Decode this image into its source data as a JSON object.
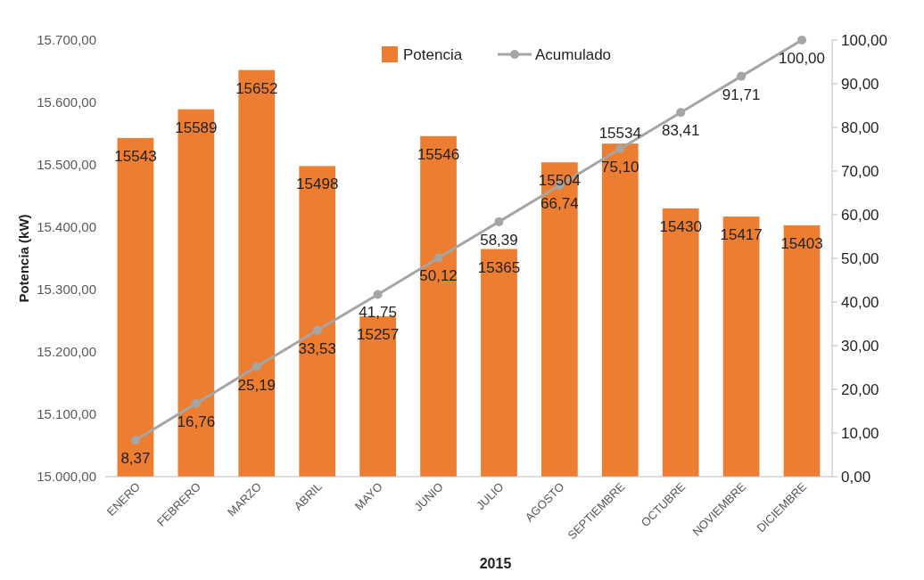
{
  "chart_data": {
    "type": "bar",
    "xlabel": "2015",
    "ylabel": "Potencia (kW)",
    "categories": [
      "ENERO",
      "FEBRERO",
      "MARZO",
      "ABRIL",
      "MAYO",
      "JUNIO",
      "JULIO",
      "AGOSTO",
      "SEPTIEMBRE",
      "OCTUBRE",
      "NOVIEMBRE",
      "DICIEMBRE"
    ],
    "series": [
      {
        "name": "Potencia",
        "color": "#ed7d31",
        "values": [
          15543,
          15589,
          15652,
          15498,
          15257,
          15546,
          15365,
          15504,
          15534,
          15430,
          15417,
          15403
        ],
        "value_labels": [
          "15543",
          "15589",
          "15652",
          "15498",
          "15257",
          "15546",
          "15365",
          "15504",
          "15534",
          "15430",
          "15417",
          "15403"
        ]
      },
      {
        "name": "Acumulado",
        "type": "line",
        "axis": "y2",
        "color": "#a5a5a5",
        "values": [
          8.37,
          16.76,
          25.19,
          33.53,
          41.75,
          50.12,
          58.39,
          66.74,
          75.1,
          83.41,
          91.71,
          100.0
        ],
        "value_labels": [
          "8,37",
          "16,76",
          "25,19",
          "33,53",
          "41,75",
          "50,12",
          "58,39",
          "66,74",
          "75,10",
          "83,41",
          "91,71",
          "100,00"
        ]
      }
    ],
    "ylim": [
      15000,
      15700
    ],
    "yticks": [
      {
        "value": 15000,
        "label": "15.000,00"
      },
      {
        "value": 15100,
        "label": "15.100,00"
      },
      {
        "value": 15200,
        "label": "15.200,00"
      },
      {
        "value": 15300,
        "label": "15.300,00"
      },
      {
        "value": 15400,
        "label": "15.400,00"
      },
      {
        "value": 15500,
        "label": "15.500,00"
      },
      {
        "value": 15600,
        "label": "15.600,00"
      },
      {
        "value": 15700,
        "label": "15.700,00"
      }
    ],
    "y2lim": [
      0,
      100
    ],
    "y2ticks": [
      {
        "value": 0,
        "label": "0,00"
      },
      {
        "value": 10,
        "label": "10,00"
      },
      {
        "value": 20,
        "label": "20,00"
      },
      {
        "value": 30,
        "label": "30,00"
      },
      {
        "value": 40,
        "label": "40,00"
      },
      {
        "value": 50,
        "label": "50,00"
      },
      {
        "value": 60,
        "label": "60,00"
      },
      {
        "value": 70,
        "label": "70,00"
      },
      {
        "value": 80,
        "label": "80,00"
      },
      {
        "value": 90,
        "label": "90,00"
      },
      {
        "value": 100,
        "label": "100,00"
      }
    ],
    "legend": "top",
    "marker": "circle",
    "grid": false
  }
}
